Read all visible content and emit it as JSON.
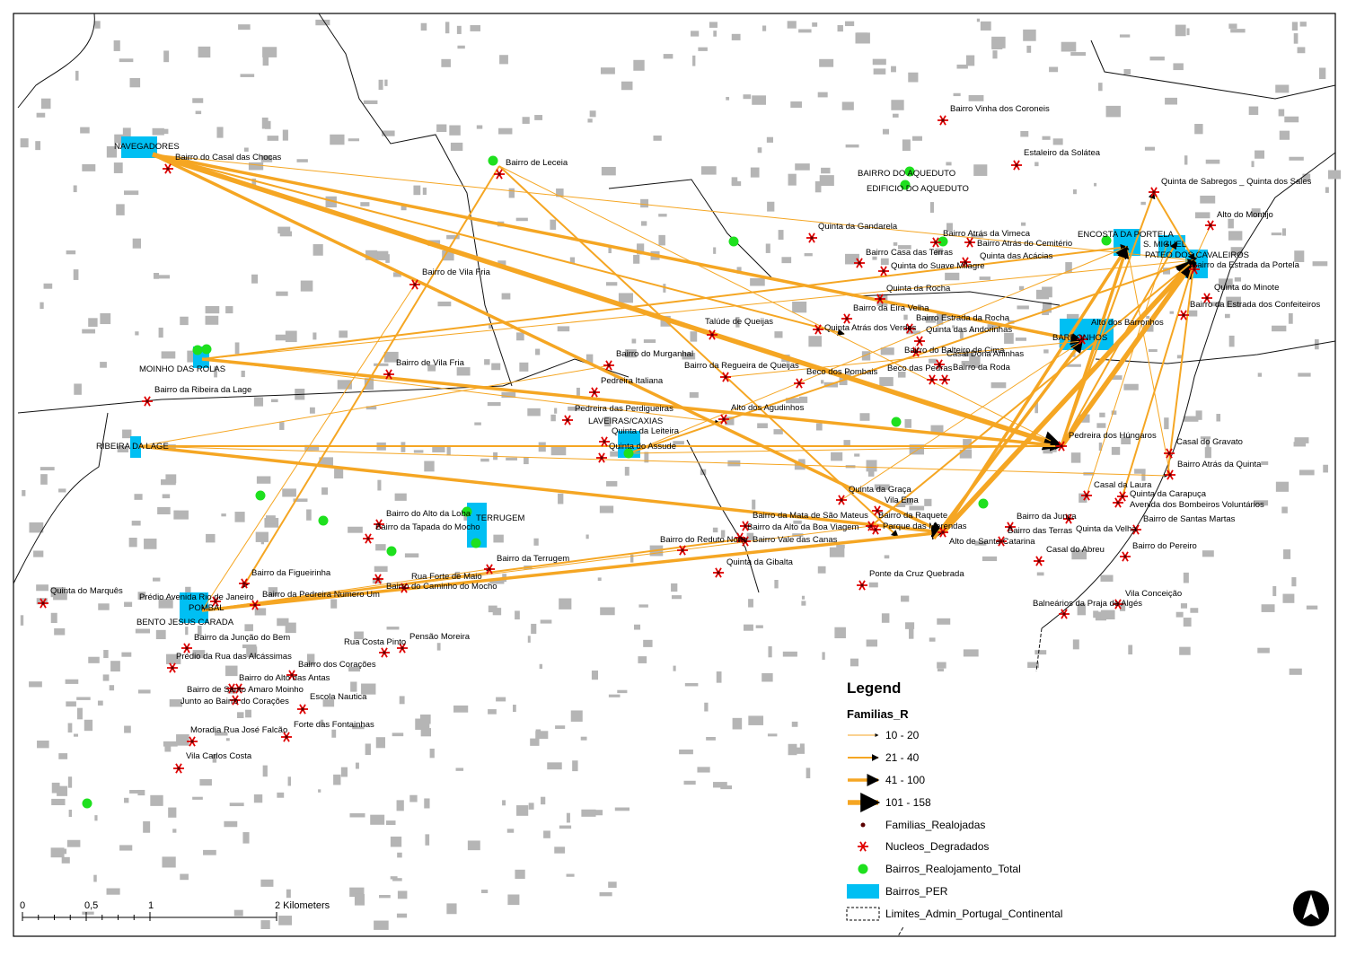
{
  "bairros_per": [
    "NAVEGADORES",
    "MOINHO DAS ROLAS",
    "RIBEIRA DA LAGE",
    "TERRUGEM",
    "LAVEIRAS/CAXIAS",
    "POMBAL",
    "BENTO JESUS CARADA",
    "BAIRRO DO AQUEDUTO",
    "EDIFICIO DO AQUEDUTO",
    "ENCOSTA DA PORTELA",
    "S. MIGUEL",
    "PATEO DOS CAVALEIROS",
    "BARRONHOS"
  ],
  "nucleos_degradados": [
    "Bairro do Casal das Chocas",
    "Bairro de Leceia",
    "Bairro Vinha dos Coroneis",
    "Estaleiro da Solátea",
    "Quinta da Gandarela",
    "Bairro Atrás da Vimeca",
    "Bairro Atrás do Cemitério",
    "Bairro Casa das Terras",
    "Quinta das Acácias",
    "Quinta do Suave Milagre",
    "Quinta de Sabregos _ Quinta dos Sales",
    "Alto do Montijo",
    "Bairro da Estrada da Portela",
    "Quinta do Minote",
    "Bairro da Estrada dos Confeiteiros",
    "Bairro de Vila Fria",
    "Quinta da Rocha",
    "Bairro da Eira Velha",
    "Bairro Estrada da Rocha",
    "Quinta Atrás dos Verdes",
    "Quinta das Andorinhas",
    "Talúde de Queijas",
    "Alto dos Barronhos",
    "Bairro do Balteiro de Cima",
    "Casal Dona Aninhas",
    "Bairro do Murganhal",
    "Bairro da Regueira de Queijas",
    "Beco dos Pombais",
    "Beco das Pedras",
    "Bairro da Roda",
    "Bairro de Vila Fria",
    "Bairro da Ribeira da Lage",
    "Pedreira Italiana",
    "Pedreira das Perdigueiras",
    "Alto dos Agudinhos",
    "Quinta da Leiteira",
    "Quinta do Assude",
    "Pedreira dos Húngaros",
    "Casal do Gravato",
    "Bairro Atrás da Quinta",
    "Casal da Laura",
    "Quinta da Carapuça",
    "Avenida dos Bombeiros Voluntários",
    "Quinta da Graça",
    "Vila Ema",
    "Bairro da Mata de São Mateus",
    "Bairro da Raquete",
    "Parque das Merendas",
    "Bairro da Alto da Boa Viagem",
    "Bairro Vale das Canas",
    "Bairro do Reduto Norte",
    "Alto de Santa Catarina",
    "Bairro da Junça",
    "Bairro das Terras",
    "Quinta da Velha",
    "Bairro de Santas Martas",
    "Bairro do Pereiro",
    "Casal do Abreu",
    "Quinta da Gibalta",
    "Ponte da Cruz Quebrada",
    "Vila Conceição",
    "Balneários da Praja de Algés",
    "Bairro do Alto da Loba",
    "Bairro da Tapada do Mocho",
    "Bairro da Terrugem",
    "Rua Forte de Maio",
    "Bairro do Caminho do Mocho",
    "Bairro da Figueirinha",
    "Bairro da Pedreira Numero Um",
    "Prédio Avenida Rio de Janeiro",
    "Quinta do Marquês",
    "Bairro da Junção do Bem",
    "Prédio da Rua das Alcássimas",
    "Rua Costa Pinto",
    "Pensão Moreira",
    "Bairro dos Corações",
    "Bairro do Alto das Antas",
    "Bairro de Santo Amaro Moinho",
    "Junto ao Bairro do Corações",
    "Escola Nautica",
    "Forte das Fontainhas",
    "Moradia Rua José Falcão",
    "Vila Carlos Costa"
  ],
  "legend": {
    "title": "Legend",
    "subtitle": "Familias_R",
    "items": [
      "10 - 20",
      "21 - 40",
      "41 - 100",
      "101 - 158",
      "Familias_Realojadas",
      "Nucleos_Degradados",
      "Bairros_Realojamento_Total",
      "Bairros_PER",
      "Limites_Admin_Portugal_Continental"
    ]
  },
  "scale_bar": {
    "labels": [
      "0",
      "0,5",
      "1",
      "2 Kilometers"
    ]
  }
}
